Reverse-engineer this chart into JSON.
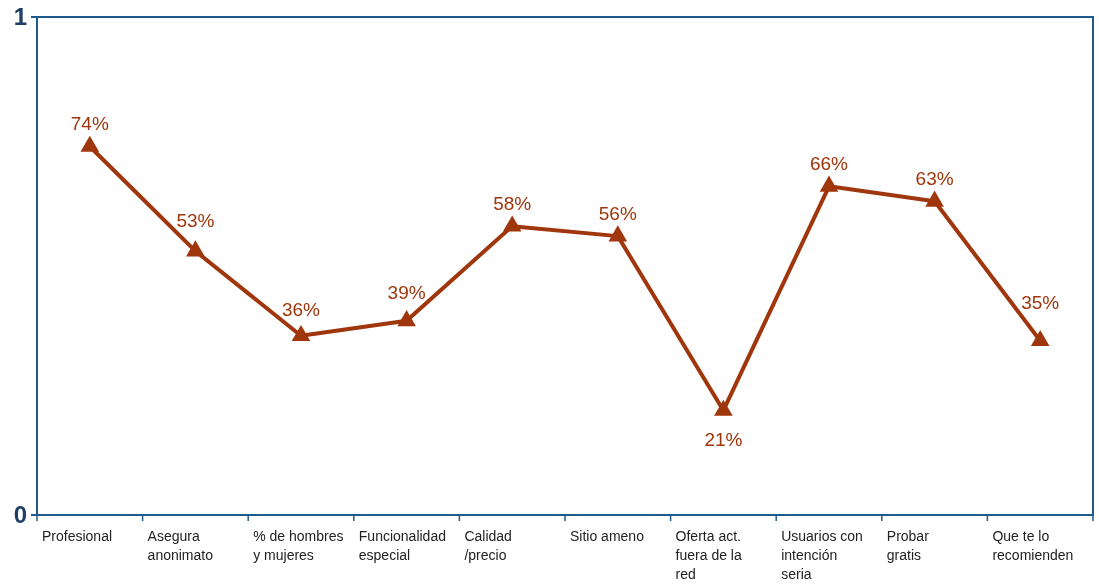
{
  "chart_data": {
    "type": "line",
    "categories": [
      "Profesional",
      "Asegura anonimato",
      "% de hombres y mujeres",
      "Funcionalidad especial",
      "Calidad /precio",
      "Sitio ameno",
      "Oferta act. fuera de la red",
      "Usuarios con intención seria",
      "Probar gratis",
      "Que te lo recomienden"
    ],
    "series": [
      {
        "color": "#a0360c",
        "values": [
          0.74,
          0.53,
          0.36,
          0.39,
          0.58,
          0.56,
          0.21,
          0.66,
          0.63,
          0.35
        ],
        "value_labels": [
          "74%",
          "53%",
          "36%",
          "39%",
          "58%",
          "56%",
          "21%",
          "66%",
          "63%",
          "35%"
        ]
      }
    ],
    "ylim": [
      0,
      1
    ],
    "yticks": [
      0,
      1
    ],
    "marker": "triangle"
  }
}
